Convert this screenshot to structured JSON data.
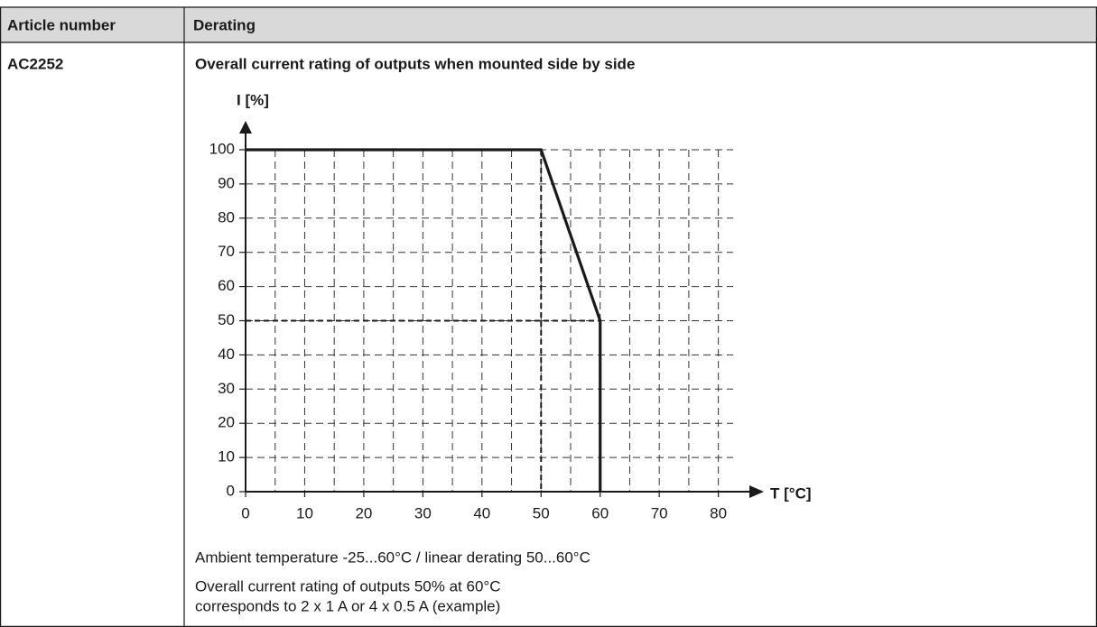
{
  "table": {
    "headers": [
      "Article number",
      "Derating"
    ],
    "rows": [
      [
        "AC2252"
      ]
    ]
  },
  "chart_data": {
    "type": "line",
    "title": "Overall current rating of outputs when mounted side by side",
    "ylabel": "I [%]",
    "xlabel": "T [°C]",
    "x": [
      0,
      50,
      60,
      60
    ],
    "values": [
      100,
      100,
      50,
      0
    ],
    "color": "#1a1a1a",
    "xlim": [
      0,
      82.5
    ],
    "ylim": [
      0,
      100
    ],
    "xticks": [
      0,
      10,
      20,
      30,
      40,
      50,
      60,
      70,
      80
    ],
    "xminor": [
      5,
      15,
      25,
      35,
      45,
      55,
      65,
      75
    ],
    "yticks": [
      0,
      10,
      20,
      30,
      40,
      50,
      60,
      70,
      80,
      90,
      100
    ],
    "grid": true
  },
  "notes": [
    "Ambient temperature -25...60°C / linear derating 50...60°C",
    "Overall current rating of outputs 50% at 60°C",
    "corresponds to 2 x 1 A or 4 x 0.5 A (example)"
  ]
}
